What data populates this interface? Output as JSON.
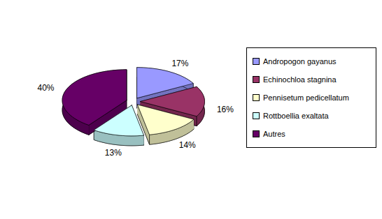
{
  "chart_data": {
    "type": "pie",
    "categories": [
      "Andropogon gayanus",
      "Echinochloa stagnina",
      "Pennisetum pedicellatum",
      "Rottboellia exaltata",
      "Autres"
    ],
    "values": [
      17,
      16,
      14,
      13,
      40
    ],
    "value_labels": [
      "17%",
      "16%",
      "14%",
      "13%",
      "40%"
    ],
    "colors": [
      "#9999ff",
      "#993366",
      "#ffffcc",
      "#ccffff",
      "#660066"
    ],
    "data_labels": true,
    "legend": "right"
  }
}
